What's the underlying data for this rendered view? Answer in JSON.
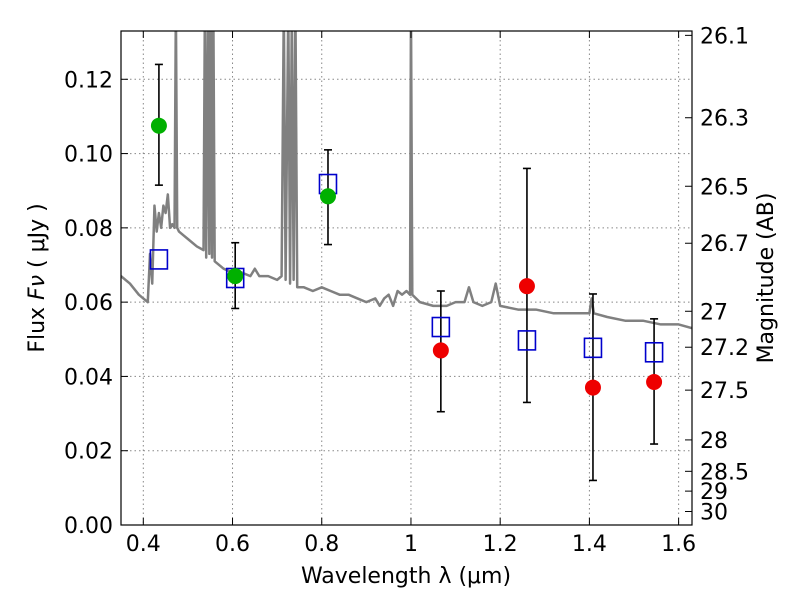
{
  "chart_data": {
    "type": "scatter",
    "xlabel": "Wavelength  λ (μm)",
    "ylabel_prefix": "Flux ",
    "ylabel_symbol": "Fν",
    "ylabel_suffix": " ( μJy )",
    "ylabel_right": "Magnitude (AB)",
    "xlim": [
      0.35,
      1.63
    ],
    "ylim": [
      0.0,
      0.133
    ],
    "grid": true,
    "x_ticks": [
      {
        "value": 0.4,
        "label": "0.4"
      },
      {
        "value": 0.6,
        "label": "0.6"
      },
      {
        "value": 0.8,
        "label": "0.8"
      },
      {
        "value": 1.0,
        "label": "1"
      },
      {
        "value": 1.2,
        "label": "1.2"
      },
      {
        "value": 1.4,
        "label": "1.4"
      },
      {
        "value": 1.6,
        "label": "1.6"
      }
    ],
    "y_ticks": [
      {
        "value": 0.0,
        "label": "0.00"
      },
      {
        "value": 0.02,
        "label": "0.02"
      },
      {
        "value": 0.04,
        "label": "0.04"
      },
      {
        "value": 0.06,
        "label": "0.06"
      },
      {
        "value": 0.08,
        "label": "0.08"
      },
      {
        "value": 0.1,
        "label": "0.10"
      },
      {
        "value": 0.12,
        "label": "0.12"
      }
    ],
    "right_ticks": [
      {
        "value": 26.1,
        "label": "26.1"
      },
      {
        "value": 26.3,
        "label": "26.3"
      },
      {
        "value": 26.5,
        "label": "26.5"
      },
      {
        "value": 26.7,
        "label": "26.7"
      },
      {
        "value": 27.0,
        "label": "27"
      },
      {
        "value": 27.2,
        "label": "27.2"
      },
      {
        "value": 27.5,
        "label": "27.5"
      },
      {
        "value": 28.0,
        "label": "28"
      },
      {
        "value": 28.5,
        "label": "28.5"
      },
      {
        "value": 29.0,
        "label": "29"
      },
      {
        "value": 30.0,
        "label": "30"
      }
    ],
    "colors": {
      "model": "#808080",
      "squares": "#0000cc",
      "green": "#00b000",
      "red": "#ee0000",
      "errorbar": "#000000",
      "grid": "#888888"
    },
    "model_spectrum": [
      [
        0.35,
        0.067
      ],
      [
        0.37,
        0.065
      ],
      [
        0.39,
        0.062
      ],
      [
        0.4,
        0.061
      ],
      [
        0.41,
        0.06
      ],
      [
        0.415,
        0.073
      ],
      [
        0.42,
        0.065
      ],
      [
        0.425,
        0.086
      ],
      [
        0.43,
        0.079
      ],
      [
        0.435,
        0.084
      ],
      [
        0.44,
        0.08
      ],
      [
        0.445,
        0.086
      ],
      [
        0.45,
        0.084
      ],
      [
        0.455,
        0.089
      ],
      [
        0.46,
        0.08
      ],
      [
        0.465,
        0.081
      ],
      [
        0.47,
        0.08
      ],
      [
        0.473,
        0.14
      ],
      [
        0.476,
        0.08
      ],
      [
        0.48,
        0.079
      ],
      [
        0.49,
        0.078
      ],
      [
        0.5,
        0.077
      ],
      [
        0.52,
        0.075
      ],
      [
        0.535,
        0.074
      ],
      [
        0.538,
        0.14
      ],
      [
        0.541,
        0.072
      ],
      [
        0.545,
        0.14
      ],
      [
        0.548,
        0.073
      ],
      [
        0.551,
        0.14
      ],
      [
        0.554,
        0.072
      ],
      [
        0.557,
        0.14
      ],
      [
        0.56,
        0.071
      ],
      [
        0.58,
        0.069
      ],
      [
        0.6,
        0.068
      ],
      [
        0.62,
        0.068
      ],
      [
        0.64,
        0.067
      ],
      [
        0.65,
        0.069
      ],
      [
        0.66,
        0.067
      ],
      [
        0.68,
        0.067
      ],
      [
        0.7,
        0.066
      ],
      [
        0.71,
        0.067
      ],
      [
        0.715,
        0.14
      ],
      [
        0.719,
        0.066
      ],
      [
        0.725,
        0.14
      ],
      [
        0.729,
        0.065
      ],
      [
        0.733,
        0.14
      ],
      [
        0.737,
        0.066
      ],
      [
        0.741,
        0.14
      ],
      [
        0.745,
        0.064
      ],
      [
        0.76,
        0.064
      ],
      [
        0.78,
        0.063
      ],
      [
        0.8,
        0.064
      ],
      [
        0.82,
        0.063
      ],
      [
        0.84,
        0.062
      ],
      [
        0.86,
        0.062
      ],
      [
        0.88,
        0.061
      ],
      [
        0.9,
        0.06
      ],
      [
        0.92,
        0.061
      ],
      [
        0.93,
        0.059
      ],
      [
        0.94,
        0.061
      ],
      [
        0.95,
        0.062
      ],
      [
        0.96,
        0.059
      ],
      [
        0.97,
        0.063
      ],
      [
        0.98,
        0.062
      ],
      [
        0.99,
        0.063
      ],
      [
        0.998,
        0.062
      ],
      [
        1.0,
        0.14
      ],
      [
        1.003,
        0.062
      ],
      [
        1.02,
        0.06
      ],
      [
        1.05,
        0.059
      ],
      [
        1.08,
        0.059
      ],
      [
        1.1,
        0.06
      ],
      [
        1.12,
        0.06
      ],
      [
        1.13,
        0.064
      ],
      [
        1.14,
        0.06
      ],
      [
        1.16,
        0.059
      ],
      [
        1.18,
        0.06
      ],
      [
        1.19,
        0.065
      ],
      [
        1.2,
        0.059
      ],
      [
        1.24,
        0.058
      ],
      [
        1.28,
        0.058
      ],
      [
        1.32,
        0.057
      ],
      [
        1.36,
        0.057
      ],
      [
        1.4,
        0.057
      ],
      [
        1.405,
        0.061
      ],
      [
        1.41,
        0.057
      ],
      [
        1.44,
        0.056
      ],
      [
        1.48,
        0.055
      ],
      [
        1.52,
        0.055
      ],
      [
        1.56,
        0.054
      ],
      [
        1.6,
        0.054
      ],
      [
        1.63,
        0.053
      ]
    ],
    "squares": [
      {
        "x": 0.435,
        "y": 0.0715
      },
      {
        "x": 0.606,
        "y": 0.0665
      },
      {
        "x": 0.814,
        "y": 0.0918
      },
      {
        "x": 1.067,
        "y": 0.0533
      },
      {
        "x": 1.26,
        "y": 0.0497
      },
      {
        "x": 1.408,
        "y": 0.0477
      },
      {
        "x": 1.545,
        "y": 0.0465
      }
    ],
    "green_points": [
      {
        "x": 0.435,
        "y": 0.1075,
        "yerr_low": 0.0915,
        "yerr_high": 0.124
      },
      {
        "x": 0.606,
        "y": 0.067,
        "yerr_low": 0.0583,
        "yerr_high": 0.076
      },
      {
        "x": 0.814,
        "y": 0.0885,
        "yerr_low": 0.0755,
        "yerr_high": 0.101
      }
    ],
    "red_points": [
      {
        "x": 1.067,
        "y": 0.047,
        "yerr_low": 0.0305,
        "yerr_high": 0.063
      },
      {
        "x": 1.26,
        "y": 0.0643,
        "yerr_low": 0.033,
        "yerr_high": 0.096
      },
      {
        "x": 1.408,
        "y": 0.037,
        "yerr_low": 0.012,
        "yerr_high": 0.0622
      },
      {
        "x": 1.545,
        "y": 0.0385,
        "yerr_low": 0.0218,
        "yerr_high": 0.0555
      }
    ]
  }
}
